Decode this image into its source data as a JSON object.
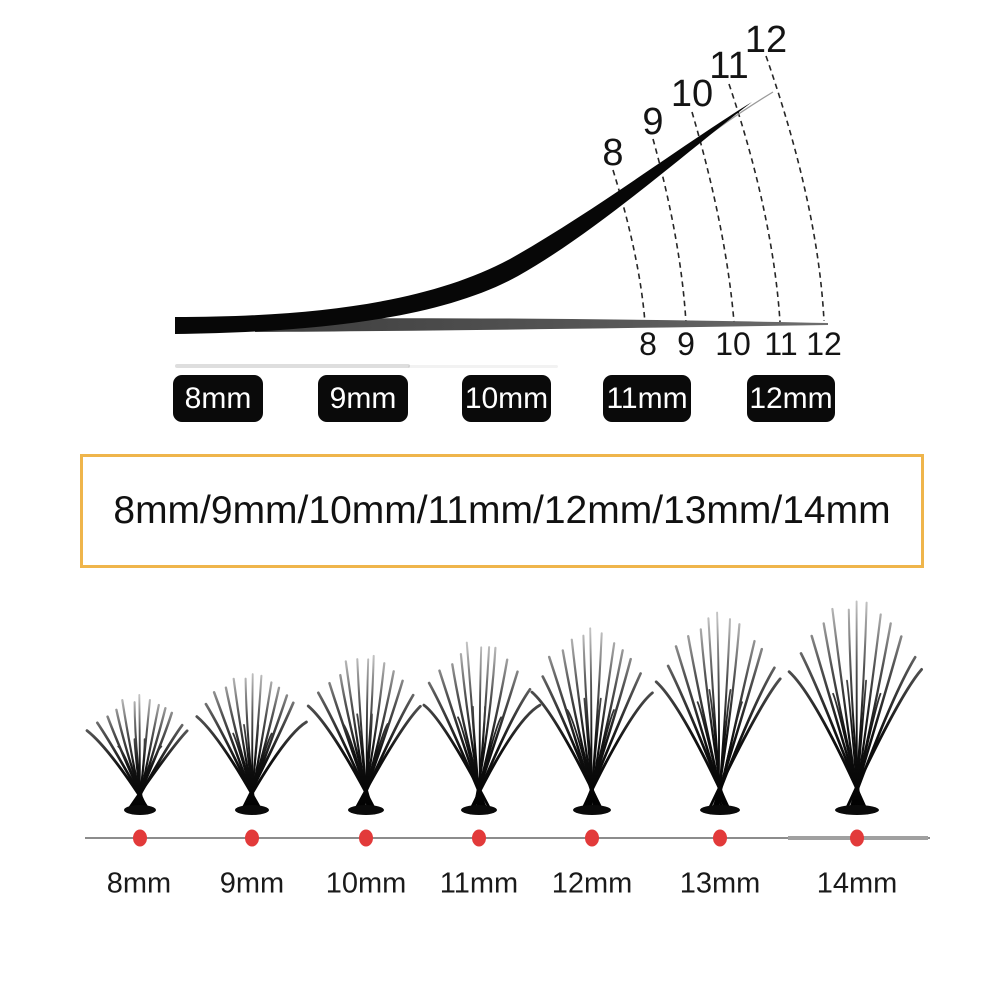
{
  "curl_diagram": {
    "tip_labels": [
      "8",
      "9",
      "10",
      "11",
      "12"
    ],
    "base_labels": [
      "8",
      "9",
      "10",
      "11",
      "12"
    ]
  },
  "size_badges": [
    "8mm",
    "9mm",
    "10mm",
    "11mm",
    "12mm"
  ],
  "length_range_box": {
    "text": "8mm/9mm/10mm/11mm/12mm/13mm/14mm",
    "border_color": "#EFB54B"
  },
  "cluster_row": {
    "labels": [
      "8mm",
      "9mm",
      "10mm",
      "11mm",
      "12mm",
      "13mm",
      "14mm"
    ],
    "dot_color": "#E23A3A",
    "line_color": "#8C8C8C",
    "lash_color": "#0A0A0A"
  }
}
